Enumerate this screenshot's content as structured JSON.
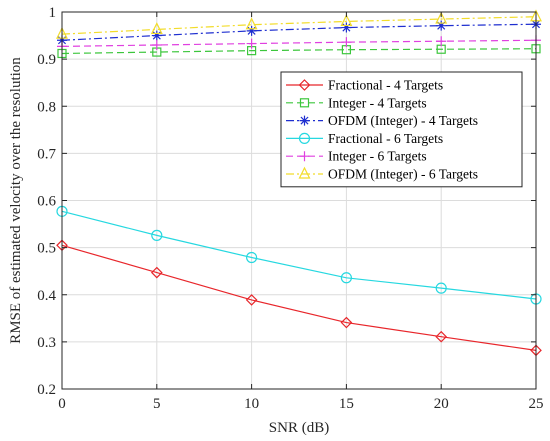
{
  "chart_data": {
    "type": "line",
    "xlabel": "SNR (dB)",
    "ylabel": "RMSE of estimated velocity over the resolution",
    "xlim": [
      0,
      25
    ],
    "ylim": [
      0.2,
      1.0
    ],
    "xticks": [
      0,
      5,
      10,
      15,
      20,
      25
    ],
    "yticks": [
      0.2,
      0.3,
      0.4,
      0.5,
      0.6,
      0.7,
      0.8,
      0.9,
      1.0
    ],
    "xtick_labels": [
      "0",
      "5",
      "10",
      "15",
      "20",
      "25"
    ],
    "ytick_labels": [
      "0.2",
      "0.3",
      "0.4",
      "0.5",
      "0.6",
      "0.7",
      "0.8",
      "0.9",
      "1"
    ],
    "grid": true,
    "legend_position": "top-right",
    "x": [
      0,
      5,
      10,
      15,
      20,
      25
    ],
    "series": [
      {
        "name": "Fractional - 4 Targets",
        "values": [
          0.505,
          0.447,
          0.389,
          0.341,
          0.311,
          0.282
        ],
        "color": "#e8262b",
        "marker": "diamond",
        "dash": "solid"
      },
      {
        "name": "Integer - 4 Targets",
        "values": [
          0.912,
          0.915,
          0.918,
          0.92,
          0.921,
          0.922
        ],
        "color": "#3cc63c",
        "marker": "square",
        "dash": "dashed"
      },
      {
        "name": "OFDM (Integer) - 4 Targets",
        "values": [
          0.94,
          0.95,
          0.96,
          0.967,
          0.971,
          0.974
        ],
        "color": "#1f2fd0",
        "marker": "asterisk",
        "dash": "dashdot"
      },
      {
        "name": "Fractional - 6 Targets",
        "values": [
          0.577,
          0.526,
          0.479,
          0.436,
          0.414,
          0.391
        ],
        "color": "#26d8e0",
        "marker": "circle",
        "dash": "solid"
      },
      {
        "name": "Integer - 6 Targets",
        "values": [
          0.927,
          0.93,
          0.933,
          0.936,
          0.938,
          0.94
        ],
        "color": "#e040e0",
        "marker": "plus",
        "dash": "dashed"
      },
      {
        "name": "OFDM (Integer) - 6 Targets",
        "values": [
          0.953,
          0.963,
          0.973,
          0.98,
          0.985,
          0.99
        ],
        "color": "#f2dc2a",
        "marker": "triangle",
        "dash": "dashdot"
      }
    ]
  }
}
